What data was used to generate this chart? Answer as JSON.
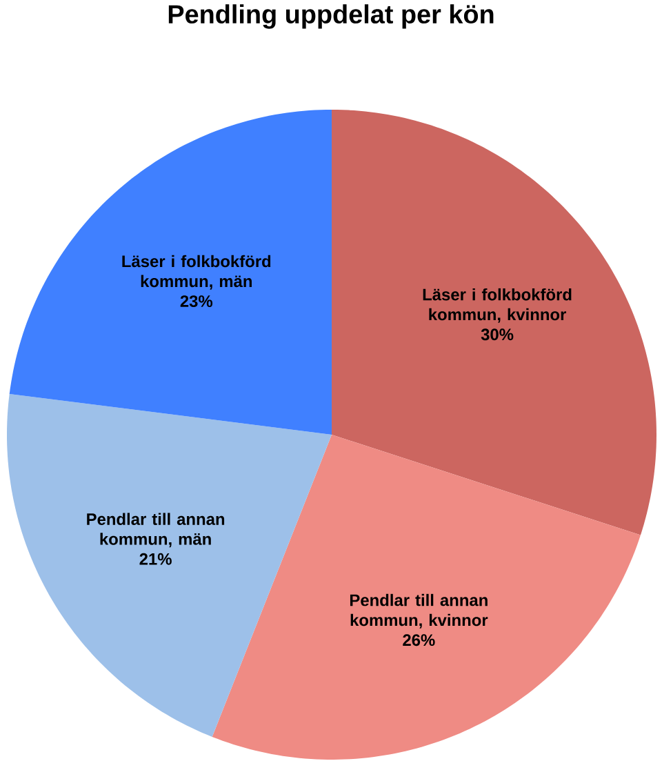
{
  "chart_data": {
    "type": "pie",
    "title": "Pendling uppdelat per kön",
    "categories": [
      "Läser i folkbokförd kommun, kvinnor",
      "Pendlar till annan kommun, kvinnor",
      "Pendlar till annan kommun, män",
      "Läser i folkbokförd kommun, män"
    ],
    "values": [
      30,
      26,
      21,
      23
    ],
    "value_labels": [
      "30%",
      "26%",
      "21%",
      "23%"
    ],
    "colors": [
      "#cc6660",
      "#ef8b84",
      "#9dc0e9",
      "#4080ff"
    ]
  }
}
